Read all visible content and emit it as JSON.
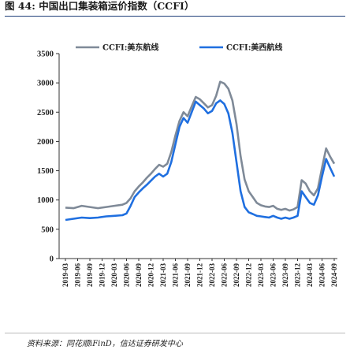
{
  "figure": {
    "title_prefix": "图 44:",
    "title": "中国出口集装箱运价指数（CCFI）",
    "source": "资料来源：同花顺iFinD，信达证券研发中心"
  },
  "colors": {
    "east": "#7f8a98",
    "west": "#1f6fe0"
  },
  "chart_data": {
    "type": "line",
    "title": "中国出口集装箱运价指数（CCFI）",
    "ylim": [
      0,
      3500
    ],
    "yticks": [
      0,
      500,
      1000,
      1500,
      2000,
      2500,
      3000,
      3500
    ],
    "xlim": [
      "2019-03",
      "2024-09"
    ],
    "xticks": [
      "2019-03",
      "2019-06",
      "2019-09",
      "2019-12",
      "2020-03",
      "2020-06",
      "2020-09",
      "2020-12",
      "2021-03",
      "2021-06",
      "2021-09",
      "2021-12",
      "2022-03",
      "2022-06",
      "2022-09",
      "2022-12",
      "2023-03",
      "2023-06",
      "2023-09",
      "2023-12",
      "2024-03",
      "2024-06",
      "2024-09"
    ],
    "legend_position": "top",
    "grid": false,
    "series": [
      {
        "name": "CCFI:美东航线",
        "color": "#7f8a98",
        "points": [
          [
            "2019-03",
            870
          ],
          [
            "2019-05",
            860
          ],
          [
            "2019-07",
            900
          ],
          [
            "2019-09",
            880
          ],
          [
            "2019-11",
            860
          ],
          [
            "2020-01",
            880
          ],
          [
            "2020-03",
            900
          ],
          [
            "2020-05",
            920
          ],
          [
            "2020-06",
            950
          ],
          [
            "2020-07",
            1030
          ],
          [
            "2020-08",
            1150
          ],
          [
            "2020-09",
            1230
          ],
          [
            "2020-10",
            1300
          ],
          [
            "2020-11",
            1380
          ],
          [
            "2020-12",
            1450
          ],
          [
            "2021-01",
            1530
          ],
          [
            "2021-02",
            1600
          ],
          [
            "2021-03",
            1570
          ],
          [
            "2021-04",
            1620
          ],
          [
            "2021-05",
            1820
          ],
          [
            "2021-06",
            2100
          ],
          [
            "2021-07",
            2350
          ],
          [
            "2021-08",
            2500
          ],
          [
            "2021-09",
            2430
          ],
          [
            "2021-10",
            2600
          ],
          [
            "2021-11",
            2760
          ],
          [
            "2021-12",
            2720
          ],
          [
            "2022-01",
            2650
          ],
          [
            "2022-02",
            2580
          ],
          [
            "2022-03",
            2620
          ],
          [
            "2022-04",
            2780
          ],
          [
            "2022-05",
            3020
          ],
          [
            "2022-06",
            2990
          ],
          [
            "2022-07",
            2900
          ],
          [
            "2022-08",
            2700
          ],
          [
            "2022-09",
            2300
          ],
          [
            "2022-10",
            1750
          ],
          [
            "2022-11",
            1350
          ],
          [
            "2022-12",
            1150
          ],
          [
            "2023-01",
            1050
          ],
          [
            "2023-02",
            950
          ],
          [
            "2023-03",
            910
          ],
          [
            "2023-04",
            890
          ],
          [
            "2023-05",
            880
          ],
          [
            "2023-06",
            900
          ],
          [
            "2023-07",
            850
          ],
          [
            "2023-08",
            830
          ],
          [
            "2023-09",
            850
          ],
          [
            "2023-10",
            820
          ],
          [
            "2023-11",
            840
          ],
          [
            "2023-12",
            880
          ],
          [
            "2024-01",
            1340
          ],
          [
            "2024-02",
            1280
          ],
          [
            "2024-03",
            1150
          ],
          [
            "2024-04",
            1080
          ],
          [
            "2024-05",
            1200
          ],
          [
            "2024-06",
            1550
          ],
          [
            "2024-07",
            1880
          ],
          [
            "2024-08",
            1740
          ],
          [
            "2024-09",
            1620
          ]
        ]
      },
      {
        "name": "CCFI:美西航线",
        "color": "#1f6fe0",
        "points": [
          [
            "2019-03",
            660
          ],
          [
            "2019-05",
            680
          ],
          [
            "2019-07",
            700
          ],
          [
            "2019-09",
            690
          ],
          [
            "2019-11",
            700
          ],
          [
            "2020-01",
            720
          ],
          [
            "2020-03",
            730
          ],
          [
            "2020-05",
            740
          ],
          [
            "2020-06",
            770
          ],
          [
            "2020-07",
            900
          ],
          [
            "2020-08",
            1050
          ],
          [
            "2020-09",
            1130
          ],
          [
            "2020-10",
            1200
          ],
          [
            "2020-11",
            1260
          ],
          [
            "2020-12",
            1330
          ],
          [
            "2021-01",
            1400
          ],
          [
            "2021-02",
            1450
          ],
          [
            "2021-03",
            1400
          ],
          [
            "2021-04",
            1450
          ],
          [
            "2021-05",
            1650
          ],
          [
            "2021-06",
            1950
          ],
          [
            "2021-07",
            2250
          ],
          [
            "2021-08",
            2400
          ],
          [
            "2021-09",
            2320
          ],
          [
            "2021-10",
            2500
          ],
          [
            "2021-11",
            2680
          ],
          [
            "2021-12",
            2620
          ],
          [
            "2022-01",
            2560
          ],
          [
            "2022-02",
            2480
          ],
          [
            "2022-03",
            2520
          ],
          [
            "2022-04",
            2650
          ],
          [
            "2022-05",
            2700
          ],
          [
            "2022-06",
            2640
          ],
          [
            "2022-07",
            2480
          ],
          [
            "2022-08",
            2150
          ],
          [
            "2022-09",
            1650
          ],
          [
            "2022-10",
            1150
          ],
          [
            "2022-11",
            880
          ],
          [
            "2022-12",
            790
          ],
          [
            "2023-01",
            760
          ],
          [
            "2023-02",
            730
          ],
          [
            "2023-03",
            720
          ],
          [
            "2023-04",
            710
          ],
          [
            "2023-05",
            700
          ],
          [
            "2023-06",
            730
          ],
          [
            "2023-07",
            700
          ],
          [
            "2023-08",
            680
          ],
          [
            "2023-09",
            700
          ],
          [
            "2023-10",
            680
          ],
          [
            "2023-11",
            700
          ],
          [
            "2023-12",
            730
          ],
          [
            "2024-01",
            1150
          ],
          [
            "2024-02",
            1050
          ],
          [
            "2024-03",
            950
          ],
          [
            "2024-04",
            920
          ],
          [
            "2024-05",
            1080
          ],
          [
            "2024-06",
            1400
          ],
          [
            "2024-07",
            1700
          ],
          [
            "2024-08",
            1550
          ],
          [
            "2024-09",
            1400
          ]
        ]
      }
    ]
  }
}
